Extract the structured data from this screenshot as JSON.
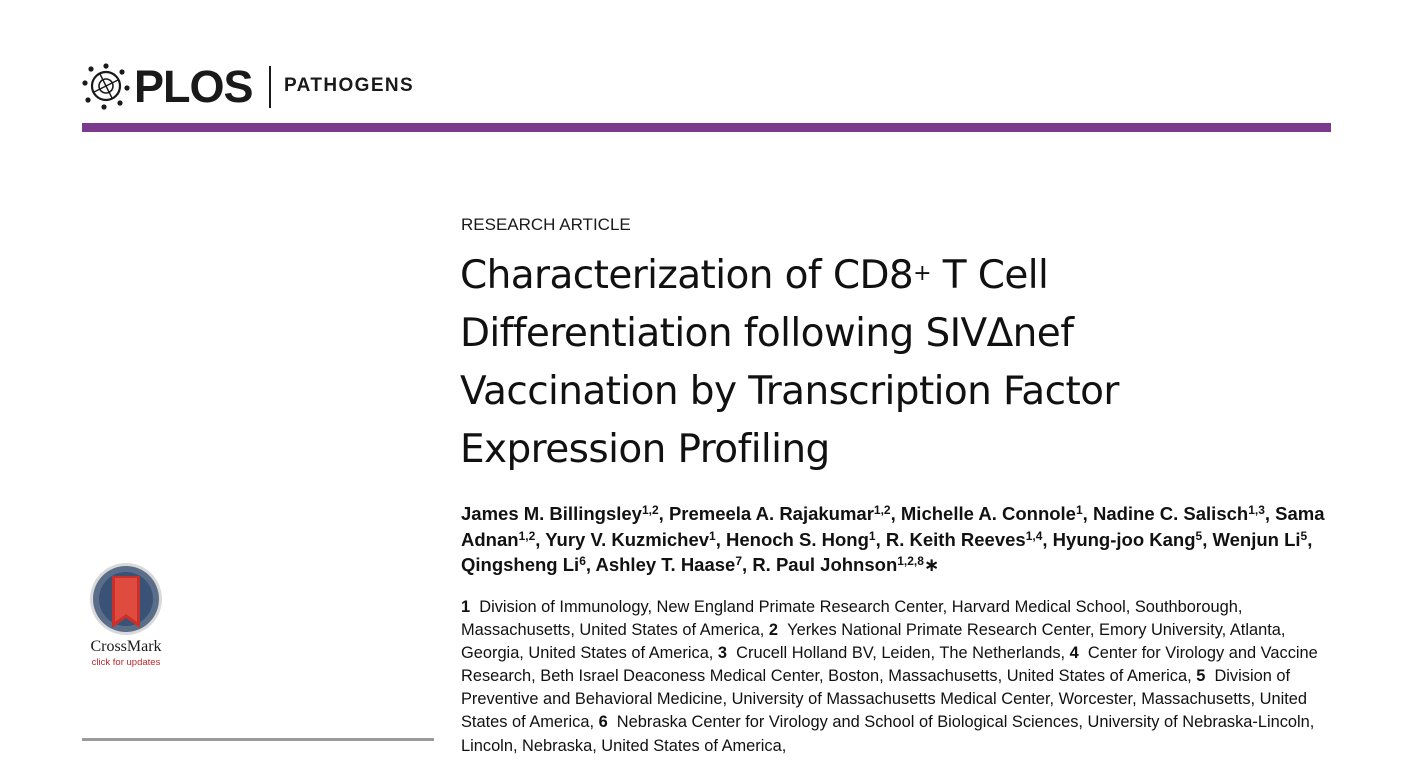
{
  "header": {
    "logo_text": "PLOS",
    "journal": "PATHOGENS",
    "accent_color": "#7b3a8e"
  },
  "article_type": "RESEARCH ARTICLE",
  "title": {
    "line1_pre": "Characterization of CD8",
    "line1_sup": "+",
    "line1_post": " T Cell",
    "line2": "Differentiation following SIVΔnef",
    "line3": "Vaccination by Transcription Factor",
    "line4": "Expression Profiling"
  },
  "authors": [
    {
      "name": "James M. Billingsley",
      "sup": "1,2",
      "sep": ", "
    },
    {
      "name": "Premeela A. Rajakumar",
      "sup": "1,2",
      "sep": ", "
    },
    {
      "name": "Michelle A. Connole",
      "sup": "1",
      "sep": ", "
    },
    {
      "name": "Nadine C. Salisch",
      "sup": "1,3",
      "sep": ", "
    },
    {
      "name": "Sama Adnan",
      "sup": "1,2",
      "sep": ", "
    },
    {
      "name": "Yury V. Kuzmichev",
      "sup": "1",
      "sep": ", "
    },
    {
      "name": "Henoch S. Hong",
      "sup": "1",
      "sep": ", "
    },
    {
      "name": "R. Keith Reeves",
      "sup": "1,4",
      "sep": ", "
    },
    {
      "name": "Hyung-joo Kang",
      "sup": "5",
      "sep": ", "
    },
    {
      "name": "Wenjun Li",
      "sup": "5",
      "sep": ", "
    },
    {
      "name": "Qingsheng Li",
      "sup": "6",
      "sep": ", "
    },
    {
      "name": "Ashley T. Haase",
      "sup": "7",
      "sep": ", "
    },
    {
      "name": "R. Paul Johnson",
      "sup": "1,2,8",
      "sep": "∗"
    }
  ],
  "affiliations": [
    {
      "num": "1",
      "text": "Division of Immunology, New England Primate Research Center, Harvard Medical School, Southborough, Massachusetts, United States of America, "
    },
    {
      "num": "2",
      "text": "Yerkes National Primate Research Center, Emory University, Atlanta, Georgia, United States of America, "
    },
    {
      "num": "3",
      "text": "Crucell Holland BV, Leiden, The Netherlands, "
    },
    {
      "num": "4",
      "text": "Center for Virology and Vaccine Research, Beth Israel Deaconess Medical Center, Boston, Massachusetts, United States of America, "
    },
    {
      "num": "5",
      "text": "Division of Preventive and Behavioral Medicine, University of Massachusetts Medical Center, Worcester, Massachusetts, United States of America, "
    },
    {
      "num": "6",
      "text": "Nebraska Center for Virology and School of Biological Sciences, University of Nebraska-Lincoln, Lincoln, Nebraska, United States of America,"
    }
  ],
  "crossmark": {
    "label": "CrossMark",
    "sub": "click for updates"
  }
}
